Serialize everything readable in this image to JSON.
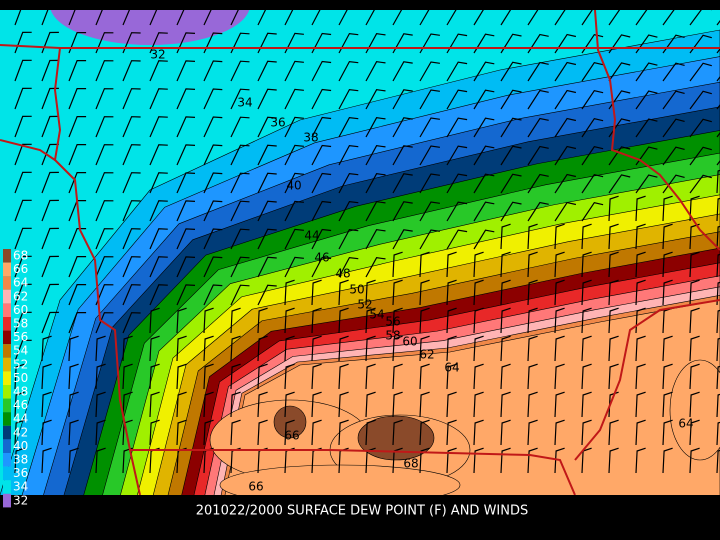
{
  "title": "201022/2000 SURFACE DEW POINT (F) AND WINDS",
  "legend": [
    {
      "label": "68",
      "color": "#8a4a2a"
    },
    {
      "label": "66",
      "color": "#ffa868"
    },
    {
      "label": "64",
      "color": "#f08848"
    },
    {
      "label": "62",
      "color": "#ffb4b4"
    },
    {
      "label": "60",
      "color": "#ff7878"
    },
    {
      "label": "58",
      "color": "#e82828"
    },
    {
      "label": "56",
      "color": "#8c0000"
    },
    {
      "label": "54",
      "color": "#c07800"
    },
    {
      "label": "52",
      "color": "#e0b400"
    },
    {
      "label": "50",
      "color": "#f0f000"
    },
    {
      "label": "48",
      "color": "#a0f000"
    },
    {
      "label": "46",
      "color": "#28c828"
    },
    {
      "label": "44",
      "color": "#009000"
    },
    {
      "label": "42",
      "color": "#003c78"
    },
    {
      "label": "40",
      "color": "#1468d0"
    },
    {
      "label": "38",
      "color": "#1e96ff"
    },
    {
      "label": "36",
      "color": "#00bcf4"
    },
    {
      "label": "34",
      "color": "#00e4e8"
    },
    {
      "label": "32",
      "color": "#9868d8"
    }
  ],
  "contour_labels": [
    "32",
    "34",
    "36",
    "38",
    "40",
    "44",
    "46",
    "48",
    "50",
    "52",
    "54",
    "56",
    "58",
    "60",
    "62",
    "64",
    "66",
    "68",
    "66",
    "64"
  ]
}
